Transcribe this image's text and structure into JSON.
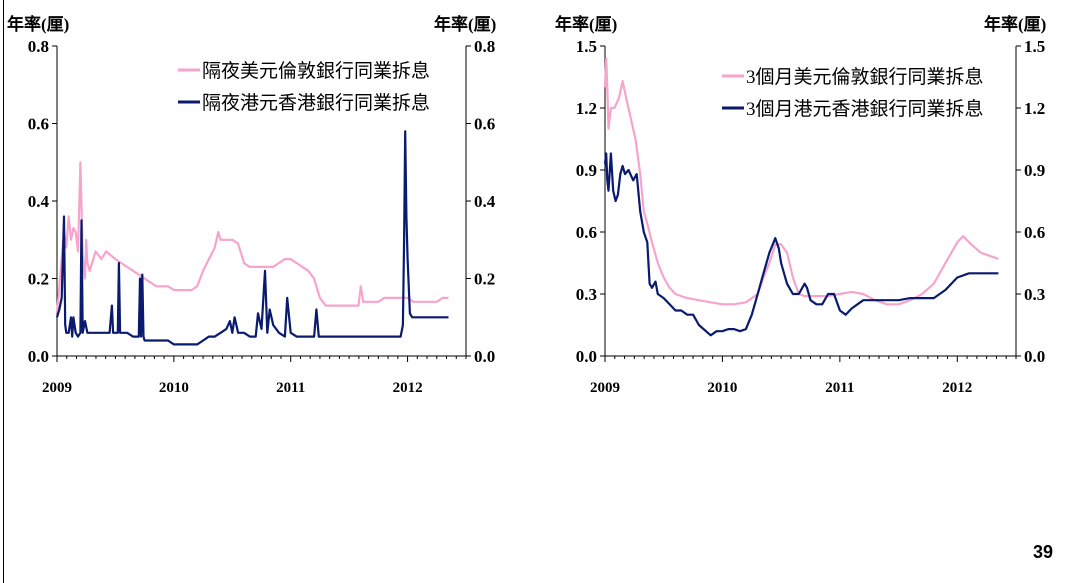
{
  "page_number": "39",
  "colors": {
    "usd": "#f7a4cc",
    "hkd": "#0a1a6e"
  },
  "chart_data": [
    {
      "type": "line",
      "y_unit_left": "年率(厘)",
      "y_unit_right": "年率(厘)",
      "ylim": [
        0,
        0.8
      ],
      "yticks": [
        "0.0",
        "0.2",
        "0.4",
        "0.6",
        "0.8"
      ],
      "xlim": [
        2009,
        2012.5
      ],
      "xticks": [
        "2009",
        "2010",
        "2011",
        "2012"
      ],
      "legend_placement": "top-right",
      "series": [
        {
          "name": "隔夜美元倫敦銀行同業拆息",
          "color": "#f7a4cc",
          "x": [
            2009.0,
            2009.04,
            2009.06,
            2009.08,
            2009.1,
            2009.12,
            2009.14,
            2009.16,
            2009.18,
            2009.2,
            2009.22,
            2009.24,
            2009.25,
            2009.26,
            2009.28,
            2009.3,
            2009.33,
            2009.38,
            2009.42,
            2009.46,
            2009.5,
            2009.55,
            2009.6,
            2009.65,
            2009.7,
            2009.75,
            2009.8,
            2009.85,
            2009.9,
            2009.95,
            2010.0,
            2010.05,
            2010.1,
            2010.15,
            2010.2,
            2010.25,
            2010.3,
            2010.35,
            2010.38,
            2010.4,
            2010.45,
            2010.5,
            2010.55,
            2010.6,
            2010.65,
            2010.7,
            2010.75,
            2010.8,
            2010.85,
            2010.9,
            2010.95,
            2011.0,
            2011.05,
            2011.1,
            2011.15,
            2011.2,
            2011.25,
            2011.3,
            2011.35,
            2011.4,
            2011.45,
            2011.5,
            2011.55,
            2011.58,
            2011.6,
            2011.62,
            2011.65,
            2011.7,
            2011.75,
            2011.8,
            2011.85,
            2011.9,
            2011.95,
            2012.0,
            2012.05,
            2012.1,
            2012.15,
            2012.2,
            2012.25,
            2012.3,
            2012.35
          ],
          "y": [
            0.11,
            0.25,
            0.32,
            0.28,
            0.36,
            0.3,
            0.33,
            0.32,
            0.27,
            0.5,
            0.26,
            0.2,
            0.3,
            0.24,
            0.22,
            0.24,
            0.27,
            0.25,
            0.27,
            0.26,
            0.25,
            0.24,
            0.23,
            0.22,
            0.21,
            0.2,
            0.19,
            0.18,
            0.18,
            0.18,
            0.17,
            0.17,
            0.17,
            0.17,
            0.18,
            0.22,
            0.25,
            0.28,
            0.32,
            0.3,
            0.3,
            0.3,
            0.29,
            0.24,
            0.23,
            0.23,
            0.23,
            0.23,
            0.23,
            0.24,
            0.25,
            0.25,
            0.24,
            0.23,
            0.22,
            0.2,
            0.15,
            0.13,
            0.13,
            0.13,
            0.13,
            0.13,
            0.13,
            0.13,
            0.18,
            0.14,
            0.14,
            0.14,
            0.14,
            0.15,
            0.15,
            0.15,
            0.15,
            0.15,
            0.14,
            0.14,
            0.14,
            0.14,
            0.14,
            0.15,
            0.15
          ]
        },
        {
          "name": "隔夜港元香港銀行同業拆息",
          "color": "#0a1a6e",
          "x": [
            2009.0,
            2009.02,
            2009.04,
            2009.06,
            2009.07,
            2009.08,
            2009.1,
            2009.12,
            2009.13,
            2009.14,
            2009.16,
            2009.18,
            2009.2,
            2009.21,
            2009.22,
            2009.24,
            2009.26,
            2009.3,
            2009.35,
            2009.4,
            2009.45,
            2009.47,
            2009.48,
            2009.5,
            2009.52,
            2009.53,
            2009.54,
            2009.56,
            2009.6,
            2009.65,
            2009.7,
            2009.71,
            2009.72,
            2009.73,
            2009.74,
            2009.75,
            2009.8,
            2009.85,
            2009.9,
            2009.95,
            2010.0,
            2010.1,
            2010.2,
            2010.25,
            2010.3,
            2010.35,
            2010.4,
            2010.45,
            2010.48,
            2010.5,
            2010.52,
            2010.55,
            2010.6,
            2010.65,
            2010.7,
            2010.72,
            2010.75,
            2010.78,
            2010.8,
            2010.82,
            2010.85,
            2010.9,
            2010.95,
            2010.97,
            2011.0,
            2011.05,
            2011.1,
            2011.2,
            2011.22,
            2011.24,
            2011.3,
            2011.4,
            2011.5,
            2011.6,
            2011.7,
            2011.8,
            2011.9,
            2011.94,
            2011.96,
            2011.97,
            2011.98,
            2011.99,
            2012.0,
            2012.02,
            2012.04,
            2012.06,
            2012.1,
            2012.2,
            2012.3,
            2012.35
          ],
          "y": [
            0.1,
            0.12,
            0.15,
            0.36,
            0.08,
            0.06,
            0.06,
            0.1,
            0.05,
            0.1,
            0.06,
            0.05,
            0.06,
            0.35,
            0.06,
            0.09,
            0.06,
            0.06,
            0.06,
            0.06,
            0.06,
            0.13,
            0.06,
            0.06,
            0.06,
            0.24,
            0.06,
            0.06,
            0.06,
            0.05,
            0.05,
            0.2,
            0.05,
            0.21,
            0.05,
            0.04,
            0.04,
            0.04,
            0.04,
            0.04,
            0.03,
            0.03,
            0.03,
            0.04,
            0.05,
            0.05,
            0.06,
            0.07,
            0.09,
            0.06,
            0.1,
            0.06,
            0.06,
            0.05,
            0.05,
            0.11,
            0.07,
            0.22,
            0.06,
            0.12,
            0.08,
            0.06,
            0.05,
            0.15,
            0.06,
            0.05,
            0.05,
            0.05,
            0.12,
            0.05,
            0.05,
            0.05,
            0.05,
            0.05,
            0.05,
            0.05,
            0.05,
            0.05,
            0.08,
            0.3,
            0.58,
            0.36,
            0.25,
            0.11,
            0.1,
            0.1,
            0.1,
            0.1,
            0.1,
            0.1
          ]
        }
      ]
    },
    {
      "type": "line",
      "y_unit_left": "年率(厘)",
      "y_unit_right": "年率(厘)",
      "ylim": [
        0,
        1.5
      ],
      "yticks": [
        "0.0",
        "0.3",
        "0.6",
        "0.9",
        "1.2",
        "1.5"
      ],
      "xlim": [
        2009,
        2012.5
      ],
      "xticks": [
        "2009",
        "2010",
        "2011",
        "2012"
      ],
      "legend_placement": "top-right",
      "series": [
        {
          "name": "3個月美元倫敦銀行同業拆息",
          "color": "#f7a4cc",
          "x": [
            2009.0,
            2009.01,
            2009.02,
            2009.03,
            2009.05,
            2009.08,
            2009.12,
            2009.15,
            2009.18,
            2009.22,
            2009.26,
            2009.3,
            2009.33,
            2009.36,
            2009.4,
            2009.45,
            2009.5,
            2009.55,
            2009.6,
            2009.65,
            2009.7,
            2009.8,
            2009.9,
            2010.0,
            2010.1,
            2010.2,
            2010.3,
            2010.35,
            2010.4,
            2010.45,
            2010.5,
            2010.55,
            2010.6,
            2010.65,
            2010.7,
            2010.8,
            2010.9,
            2011.0,
            2011.1,
            2011.2,
            2011.3,
            2011.4,
            2011.5,
            2011.6,
            2011.7,
            2011.8,
            2011.9,
            2012.0,
            2012.05,
            2012.1,
            2012.2,
            2012.3,
            2012.35
          ],
          "y": [
            1.3,
            1.44,
            1.3,
            1.1,
            1.2,
            1.2,
            1.25,
            1.33,
            1.25,
            1.15,
            1.05,
            0.88,
            0.7,
            0.64,
            0.55,
            0.45,
            0.38,
            0.33,
            0.3,
            0.29,
            0.28,
            0.27,
            0.26,
            0.25,
            0.25,
            0.26,
            0.3,
            0.38,
            0.45,
            0.54,
            0.54,
            0.5,
            0.38,
            0.3,
            0.29,
            0.29,
            0.29,
            0.3,
            0.31,
            0.3,
            0.27,
            0.25,
            0.25,
            0.27,
            0.3,
            0.35,
            0.45,
            0.55,
            0.58,
            0.55,
            0.5,
            0.48,
            0.47
          ]
        },
        {
          "name": "3個月港元香港銀行同業拆息",
          "color": "#0a1a6e",
          "x": [
            2009.0,
            2009.01,
            2009.02,
            2009.03,
            2009.05,
            2009.07,
            2009.09,
            2009.11,
            2009.13,
            2009.15,
            2009.17,
            2009.2,
            2009.24,
            2009.27,
            2009.3,
            2009.33,
            2009.36,
            2009.38,
            2009.4,
            2009.43,
            2009.45,
            2009.5,
            2009.55,
            2009.6,
            2009.65,
            2009.7,
            2009.75,
            2009.8,
            2009.9,
            2009.95,
            2010.0,
            2010.05,
            2010.1,
            2010.15,
            2010.2,
            2010.25,
            2010.3,
            2010.35,
            2010.4,
            2010.45,
            2010.48,
            2010.5,
            2010.55,
            2010.6,
            2010.65,
            2010.7,
            2010.72,
            2010.75,
            2010.8,
            2010.85,
            2010.9,
            2010.95,
            2011.0,
            2011.05,
            2011.1,
            2011.15,
            2011.2,
            2011.25,
            2011.3,
            2011.4,
            2011.5,
            2011.6,
            2011.7,
            2011.8,
            2011.9,
            2012.0,
            2012.1,
            2012.2,
            2012.3,
            2012.35
          ],
          "y": [
            0.93,
            0.98,
            0.85,
            0.8,
            0.98,
            0.8,
            0.75,
            0.78,
            0.88,
            0.92,
            0.88,
            0.9,
            0.85,
            0.88,
            0.7,
            0.6,
            0.55,
            0.35,
            0.33,
            0.36,
            0.3,
            0.28,
            0.25,
            0.22,
            0.22,
            0.2,
            0.2,
            0.15,
            0.1,
            0.12,
            0.12,
            0.13,
            0.13,
            0.12,
            0.13,
            0.2,
            0.3,
            0.4,
            0.5,
            0.57,
            0.52,
            0.45,
            0.35,
            0.3,
            0.3,
            0.35,
            0.33,
            0.27,
            0.25,
            0.25,
            0.3,
            0.3,
            0.22,
            0.2,
            0.23,
            0.25,
            0.27,
            0.27,
            0.27,
            0.27,
            0.27,
            0.28,
            0.28,
            0.28,
            0.32,
            0.38,
            0.4,
            0.4,
            0.4,
            0.4
          ]
        }
      ]
    }
  ]
}
